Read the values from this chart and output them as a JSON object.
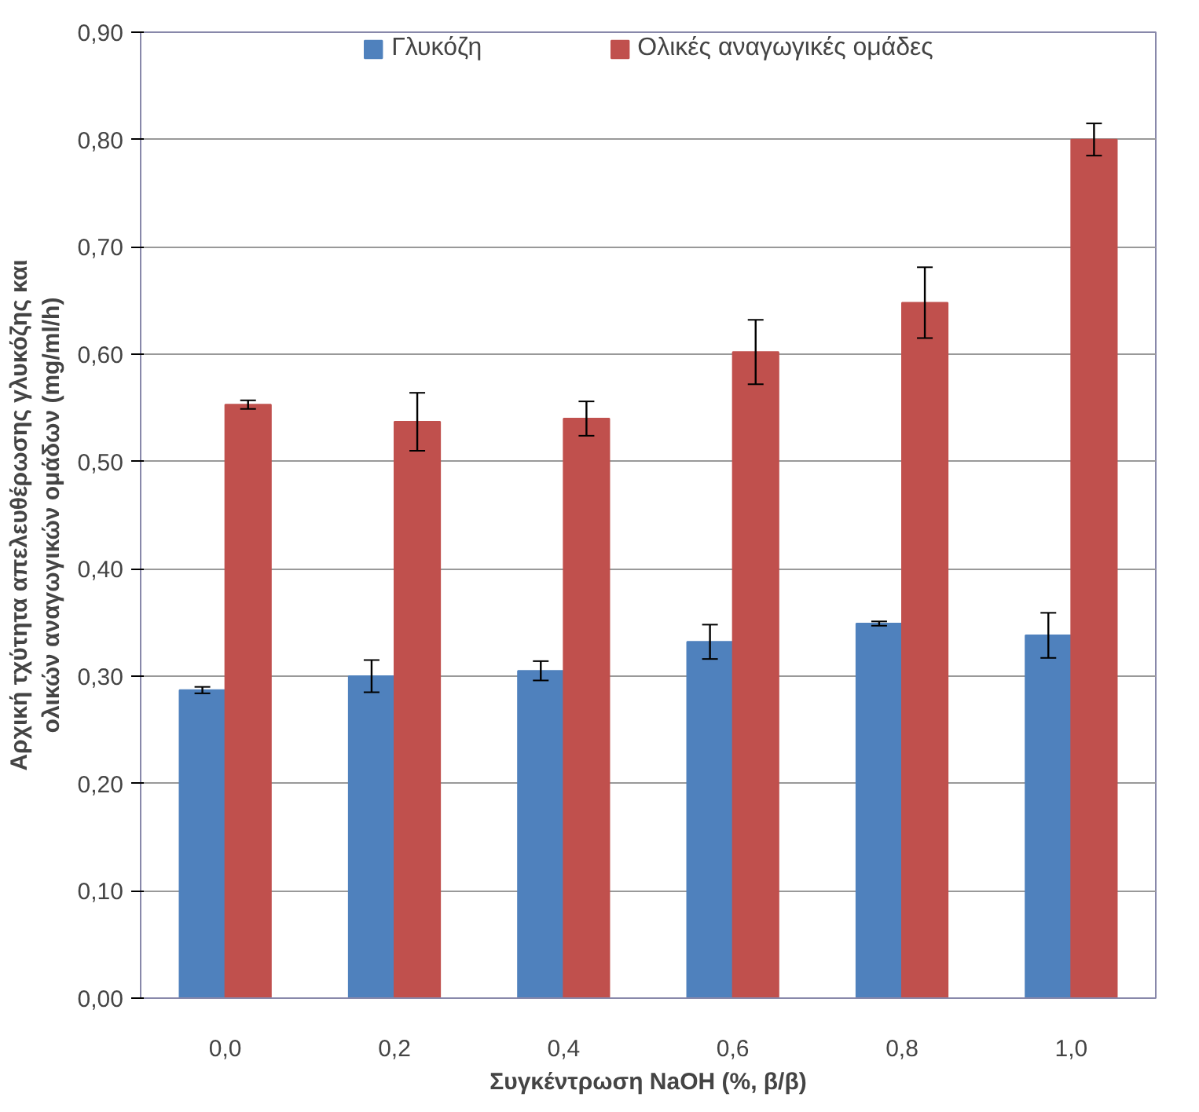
{
  "chart_data": {
    "type": "bar",
    "xlabel": "Συγκέντρωση NaOH (%, β/β)",
    "ylabel": "Αρχική τχύτητα απελευθέρωσης γλυκόζης και\nολικών αναγωγικών ομάδων (mg/ml/h)",
    "categories": [
      "0,0",
      "0,2",
      "0,4",
      "0,6",
      "0,8",
      "1,0"
    ],
    "series": [
      {
        "name": "Γλυκόζη",
        "color": "#4f81bd",
        "values": [
          0.287,
          0.3,
          0.305,
          0.332,
          0.349,
          0.338
        ],
        "errors": [
          0.003,
          0.015,
          0.009,
          0.016,
          0.002,
          0.021
        ]
      },
      {
        "name": "Ολικές αναγωγικές ομάδες",
        "color": "#c0504d",
        "values": [
          0.553,
          0.537,
          0.54,
          0.602,
          0.648,
          0.8
        ],
        "errors": [
          0.004,
          0.027,
          0.016,
          0.03,
          0.033,
          0.015
        ]
      }
    ],
    "ylim": [
      0,
      0.9
    ],
    "yticks": [
      {
        "value": 0,
        "label": "0,00"
      },
      {
        "value": 0.1,
        "label": "0,10"
      },
      {
        "value": 0.2,
        "label": "0,20"
      },
      {
        "value": 0.3,
        "label": "0,30"
      },
      {
        "value": 0.4,
        "label": "0,40"
      },
      {
        "value": 0.5,
        "label": "0,50"
      },
      {
        "value": 0.6,
        "label": "0,60"
      },
      {
        "value": 0.7,
        "label": "0,70"
      },
      {
        "value": 0.8,
        "label": "0,80"
      },
      {
        "value": 0.9,
        "label": "0,90"
      }
    ],
    "grid": "y",
    "legend": "top"
  }
}
